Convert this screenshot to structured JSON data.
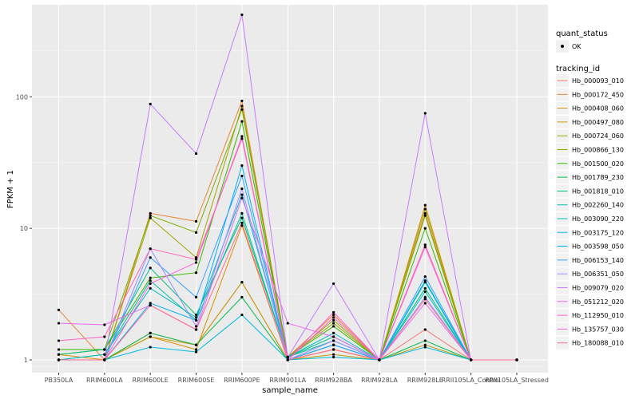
{
  "chart_data": {
    "type": "line",
    "title": "",
    "xlabel": "sample_name",
    "ylabel": "FPKM + 1",
    "y_scale": "log10",
    "ylim": [
      0.8,
      500
    ],
    "y_ticks": [
      1,
      10,
      100
    ],
    "y_tick_labels": [
      "1",
      "10",
      "100"
    ],
    "grid": true,
    "legend_placement": "right",
    "categories": [
      "PB350LA",
      "RRIM600LA",
      "RRIM600LE",
      "RRIM600SE",
      "RRIM600PE",
      "RRIM901LA",
      "RRIM928BA",
      "RRIM928LA",
      "RRIM928LE",
      "RRII105LA_Control",
      "RRII105LA_Stressed"
    ],
    "quant_legend": {
      "title": "quant_status",
      "entries": [
        "OK"
      ]
    },
    "legend_title": "tracking_id",
    "series": [
      {
        "name": "Hb_000093_010",
        "color": "#F8766D",
        "values": [
          1.0,
          1.0,
          1.6,
          1.3,
          3.9,
          1.0,
          1.2,
          1.0,
          1.7,
          1.0,
          1.0
        ]
      },
      {
        "name": "Hb_000172_450",
        "color": "#EA8331",
        "values": [
          2.4,
          1.0,
          13.0,
          11.3,
          93.0,
          1.05,
          2.2,
          1.0,
          13.0,
          1.0,
          1.0
        ]
      },
      {
        "name": "Hb_000408_060",
        "color": "#D89000",
        "values": [
          1.1,
          1.0,
          1.5,
          1.2,
          10.5,
          1.0,
          1.2,
          1.0,
          15.0,
          1.0,
          1.0
        ]
      },
      {
        "name": "Hb_000497_080",
        "color": "#C09B00",
        "values": [
          1.0,
          1.0,
          1.5,
          1.3,
          3.9,
          1.0,
          1.1,
          1.0,
          1.3,
          1.0,
          1.0
        ]
      },
      {
        "name": "Hb_000724_060",
        "color": "#A3A500",
        "values": [
          1.0,
          1.0,
          12.0,
          6.0,
          85.0,
          1.05,
          1.9,
          1.0,
          14.0,
          1.0,
          1.0
        ]
      },
      {
        "name": "Hb_000866_130",
        "color": "#7CAE00",
        "values": [
          1.1,
          1.2,
          12.5,
          9.3,
          80.0,
          1.05,
          2.0,
          1.0,
          12.5,
          1.0,
          1.0
        ]
      },
      {
        "name": "Hb_001500_020",
        "color": "#39B600",
        "values": [
          1.2,
          1.2,
          4.2,
          4.6,
          65.0,
          1.05,
          1.8,
          1.0,
          10.0,
          1.0,
          1.0
        ]
      },
      {
        "name": "Hb_001789_230",
        "color": "#00BB4E",
        "values": [
          1.0,
          1.0,
          1.6,
          1.3,
          3.0,
          1.0,
          1.3,
          1.0,
          1.4,
          1.0,
          1.0
        ]
      },
      {
        "name": "Hb_001818_010",
        "color": "#00BF7D",
        "values": [
          1.1,
          1.2,
          5.0,
          2.2,
          12.0,
          1.05,
          1.5,
          1.0,
          3.5,
          1.0,
          1.0
        ]
      },
      {
        "name": "Hb_002260_140",
        "color": "#00C1A3",
        "values": [
          1.0,
          1.1,
          4.0,
          2.0,
          13.0,
          1.05,
          1.4,
          1.0,
          3.9,
          1.0,
          1.0
        ]
      },
      {
        "name": "Hb_003090_220",
        "color": "#00BFC4",
        "values": [
          1.0,
          1.1,
          3.5,
          2.1,
          18.0,
          1.05,
          1.6,
          1.0,
          3.3,
          1.0,
          1.0
        ]
      },
      {
        "name": "Hb_003175_120",
        "color": "#00BAE0",
        "values": [
          1.0,
          1.0,
          1.25,
          1.15,
          2.2,
          1.0,
          1.05,
          1.0,
          1.25,
          1.0,
          1.0
        ]
      },
      {
        "name": "Hb_003598_050",
        "color": "#00B0F6",
        "values": [
          1.0,
          1.0,
          2.7,
          2.0,
          30.0,
          1.0,
          1.3,
          1.0,
          4.0,
          1.0,
          1.0
        ]
      },
      {
        "name": "Hb_006153_140",
        "color": "#35A2FF",
        "values": [
          1.0,
          1.0,
          6.0,
          3.0,
          25.0,
          1.0,
          1.3,
          1.0,
          4.3,
          1.0,
          1.0
        ]
      },
      {
        "name": "Hb_006351_050",
        "color": "#9590FF",
        "values": [
          1.0,
          1.0,
          7.0,
          1.8,
          20.0,
          1.0,
          1.4,
          1.0,
          3.0,
          1.0,
          1.0
        ]
      },
      {
        "name": "Hb_009079_020",
        "color": "#C77CFF",
        "values": [
          1.0,
          1.0,
          88.0,
          37.0,
          420.0,
          1.05,
          3.8,
          1.0,
          75.0,
          1.0,
          1.0
        ]
      },
      {
        "name": "Hb_051212_020",
        "color": "#E76BF3",
        "values": [
          1.9,
          1.85,
          2.6,
          1.7,
          17.0,
          1.9,
          1.5,
          1.0,
          2.7,
          1.0,
          1.0
        ]
      },
      {
        "name": "Hb_112950_010",
        "color": "#FA62DB",
        "values": [
          1.0,
          1.0,
          3.8,
          5.5,
          50.0,
          1.0,
          2.3,
          1.0,
          7.2,
          1.0,
          1.0
        ]
      },
      {
        "name": "Hb_135757_030",
        "color": "#FF62BC",
        "values": [
          1.4,
          1.5,
          7.0,
          5.8,
          48.0,
          1.0,
          2.1,
          1.0,
          7.5,
          1.0,
          1.0
        ]
      },
      {
        "name": "Hb_180088_010",
        "color": "#FF6C91",
        "values": [
          1.0,
          1.0,
          2.6,
          1.7,
          11.0,
          1.0,
          1.2,
          1.0,
          2.9,
          1.0,
          1.0
        ]
      }
    ]
  }
}
